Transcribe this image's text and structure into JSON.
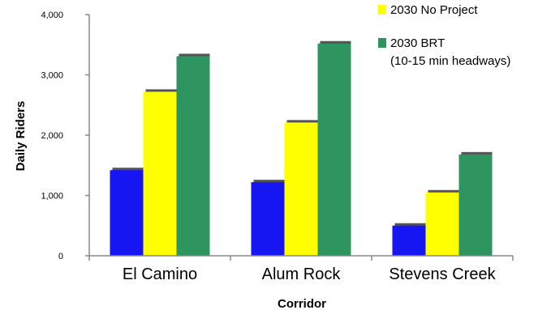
{
  "chart_data": {
    "type": "bar",
    "categories": [
      "El Camino",
      "Alum Rock",
      "Stevens Creek"
    ],
    "series": [
      {
        "values": [
          1420,
          1220,
          500
        ],
        "color": "#1616f2"
      },
      {
        "name": "2030 No Project",
        "values": [
          2720,
          2210,
          1050
        ],
        "color": "#ffff00"
      },
      {
        "name": "2030 BRT",
        "values": [
          3310,
          3520,
          1680
        ],
        "color": "#2e9560"
      }
    ],
    "legend_notes": [
      "(10-15 min headways)"
    ],
    "xlabel": "Corridor",
    "ylabel": "Daily Riders",
    "ylim": [
      0,
      4000
    ],
    "yticks": [
      0,
      1000,
      2000,
      3000,
      4000
    ],
    "ytick_labels": [
      "0",
      "1,000",
      "2,000",
      "3,000",
      "4,000"
    ],
    "grid": false,
    "legend_position": "top-right"
  }
}
